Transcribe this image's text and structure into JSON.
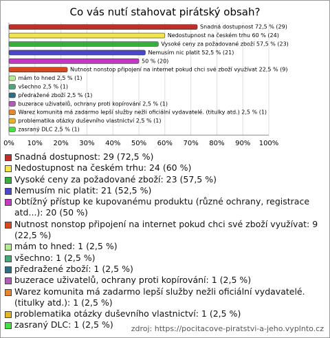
{
  "chart_data": {
    "type": "bar",
    "orientation": "horizontal",
    "title": "Co vás nutí stahovat pirátský obsah?",
    "values": [
      72.5,
      60,
      57.5,
      52.5,
      50,
      22.5,
      2.5,
      2.5,
      2.5,
      2.5,
      2.5,
      2.5,
      2.5
    ],
    "value_labels": [
      "Snadná dostupnost 72,5 % (29)",
      "Nedostupnost na českém trhu 60 % (24)",
      "Vysoké ceny za požadované zboží 57,5 % (23)",
      "Nemusím nic platit 52,5 % (21)",
      "50 % (20)",
      "Nutnost nonstop připojení na internet pokud chci své zboží využívat 22,5 % (9)",
      "mám to hned 2,5 % (1)",
      "všechno 2,5 % (1)",
      "předražené zboží 2,5 % (1)",
      "buzerace uživatelů, ochrany proti kopírování 2,5 % (1)",
      "Warez komunita má zadarmo lepší služby nežli oficiální vydavatelé. (titulky atd.) 2,5 % (1)",
      "problematika otázky duševního vlastnictví 2,5 % (1)",
      "zasraný DLC 2,5 % (1)"
    ],
    "colors": [
      "#c0302a",
      "#f2e64a",
      "#36b03a",
      "#4a48c8",
      "#c436c4",
      "#d8481e",
      "#b6ec90",
      "#4aa878",
      "#2f6f86",
      "#b45ab8",
      "#e8862e",
      "#e2b426",
      "#44e044"
    ],
    "xlim": [
      0,
      100
    ],
    "xticks": [
      {
        "value": 0,
        "label": "0%"
      },
      {
        "value": 10,
        "label": "10%"
      },
      {
        "value": 20,
        "label": "20%"
      },
      {
        "value": 30,
        "label": "30%"
      },
      {
        "value": 40,
        "label": "40%"
      },
      {
        "value": 50,
        "label": "50%"
      },
      {
        "value": 60,
        "label": "60%"
      },
      {
        "value": 70,
        "label": "70%"
      },
      {
        "value": 80,
        "label": "80%"
      },
      {
        "value": 90,
        "label": "90%"
      },
      {
        "value": 100,
        "label": "100%"
      }
    ],
    "grid": true,
    "legend": [
      "Snadná dostupnost: 29 (72,5 %)",
      "Nedostupnost na českém trhu: 24 (60 %)",
      "Vysoké ceny za požadované zboží: 23 (57,5 %)",
      "Nemusím nic platit: 21 (52,5 %)",
      "Obtížný přístup ke kupovanému produktu (různé ochrany, registrace atd...): 20 (50 %)",
      "Nutnost nonstop připojení na internet pokud chci své zboží využívat: 9 (22,5 %)",
      "mám to hned: 1 (2,5 %)",
      "všechno: 1 (2,5 %)",
      "předražené zboží: 1 (2,5 %)",
      "buzerace uživatelů, ochrany proti kopírování: 1 (2,5 %)",
      "Warez komunita má zadarmo lepší služby nežli oficiální vydavatelé. (titulky atd.): 1 (2,5 %)",
      "problematika otázky duševního vlastnictví: 1 (2,5 %)",
      "zasraný DLC: 1 (2,5 %)"
    ],
    "source": "zdroj: https://pocitacove-piratstvi-a-jeho.vyplnto.cz"
  }
}
